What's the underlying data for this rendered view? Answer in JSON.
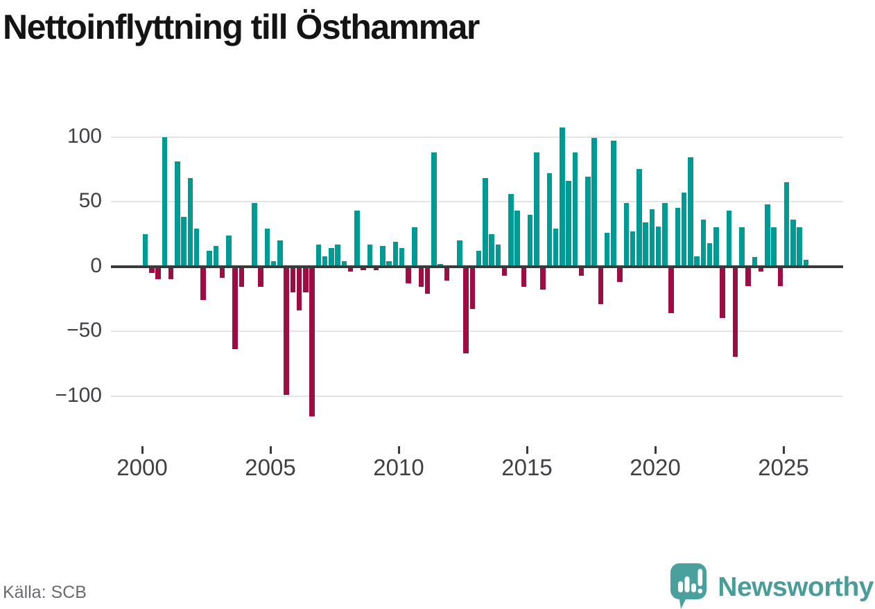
{
  "title": "Nettoinflyttning till Östhammar",
  "source_label": "Källa: SCB",
  "brand": {
    "name": "Newsworthy",
    "color": "#4a9c99"
  },
  "colors": {
    "positive": "#009a94",
    "negative": "#9d0c42",
    "zero_axis": "#3a3a3a",
    "gridline": "#e4e4e4",
    "tick_label": "#3f3f44",
    "source_text": "#6a6a6e"
  },
  "chart_data": {
    "type": "bar",
    "title": "Nettoinflyttning till Östhammar",
    "xlabel": "",
    "ylabel": "",
    "grid": "horizontal",
    "legend_position": "none",
    "ylim": [
      -125,
      115
    ],
    "y_ticks": [
      100,
      50,
      0,
      -50,
      -100
    ],
    "y_tick_labels": [
      "100",
      "50",
      "0",
      "−50",
      "−100"
    ],
    "x_tick_labels": [
      "2000",
      "2005",
      "2010",
      "2015",
      "2020",
      "2025"
    ],
    "x_tick_years": [
      2000,
      2005,
      2010,
      2015,
      2020,
      2025
    ],
    "categories": [
      "2000Q1",
      "2000Q2",
      "2000Q3",
      "2000Q4",
      "2001Q1",
      "2001Q2",
      "2001Q3",
      "2001Q4",
      "2002Q1",
      "2002Q2",
      "2002Q3",
      "2002Q4",
      "2003Q1",
      "2003Q2",
      "2003Q3",
      "2003Q4",
      "2004Q1",
      "2004Q2",
      "2004Q3",
      "2004Q4",
      "2005Q1",
      "2005Q2",
      "2005Q3",
      "2005Q4",
      "2006Q1",
      "2006Q2",
      "2006Q3",
      "2006Q4",
      "2007Q1",
      "2007Q2",
      "2007Q3",
      "2007Q4",
      "2008Q1",
      "2008Q2",
      "2008Q3",
      "2008Q4",
      "2009Q1",
      "2009Q2",
      "2009Q3",
      "2009Q4",
      "2010Q1",
      "2010Q2",
      "2010Q3",
      "2010Q4",
      "2011Q1",
      "2011Q2",
      "2011Q3",
      "2011Q4",
      "2012Q1",
      "2012Q2",
      "2012Q3",
      "2012Q4",
      "2013Q1",
      "2013Q2",
      "2013Q3",
      "2013Q4",
      "2014Q1",
      "2014Q2",
      "2014Q3",
      "2014Q4",
      "2015Q1",
      "2015Q2",
      "2015Q3",
      "2015Q4",
      "2016Q1",
      "2016Q2",
      "2016Q3",
      "2016Q4",
      "2017Q1",
      "2017Q2",
      "2017Q3",
      "2017Q4",
      "2018Q1",
      "2018Q2",
      "2018Q3",
      "2018Q4",
      "2019Q1",
      "2019Q2",
      "2019Q3",
      "2019Q4",
      "2020Q1",
      "2020Q2",
      "2020Q3",
      "2020Q4",
      "2021Q1",
      "2021Q2",
      "2021Q3",
      "2021Q4",
      "2022Q1",
      "2022Q2",
      "2022Q3",
      "2022Q4",
      "2023Q1",
      "2023Q2",
      "2023Q3",
      "2023Q4",
      "2024Q1",
      "2024Q2",
      "2024Q3",
      "2024Q4",
      "2025Q1",
      "2025Q2",
      "2025Q3",
      "2025Q4"
    ],
    "values": [
      25,
      -5,
      -10,
      100,
      -10,
      81,
      38,
      68,
      29,
      -26,
      12,
      16,
      -9,
      24,
      -64,
      -16,
      0,
      49,
      -16,
      29,
      4,
      20,
      -99,
      -20,
      -34,
      -20,
      -116,
      17,
      8,
      14,
      17,
      4,
      -4,
      43,
      -3,
      17,
      -3,
      16,
      4,
      19,
      14,
      -13,
      30,
      -16,
      -21,
      88,
      2,
      -11,
      0,
      20,
      -67,
      -33,
      12,
      68,
      25,
      17,
      -7,
      56,
      43,
      -16,
      40,
      88,
      -18,
      72,
      29,
      107,
      66,
      88,
      -7,
      69,
      99,
      -29,
      26,
      97,
      -12,
      49,
      27,
      75,
      34,
      44,
      31,
      49,
      -36,
      45,
      57,
      84,
      8,
      36,
      18,
      30,
      -40,
      43,
      -70,
      30,
      -15,
      7,
      -4,
      48,
      30,
      -15,
      65,
      36,
      30,
      5
    ]
  }
}
